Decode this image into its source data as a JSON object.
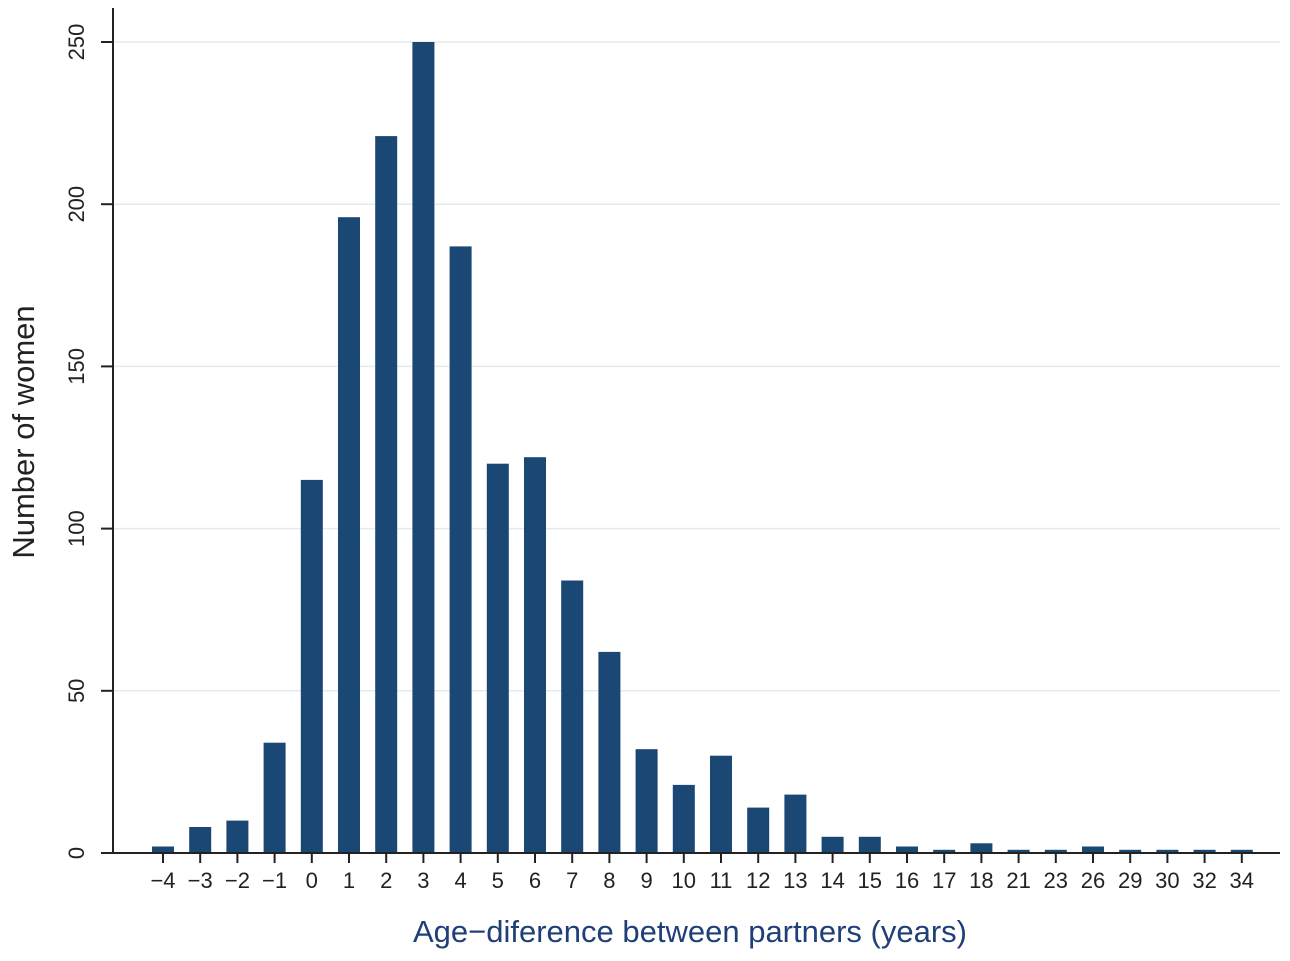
{
  "chart_data": {
    "type": "bar",
    "title": "",
    "xlabel": "Age−diference between partners (years)",
    "ylabel": "Number of women",
    "categories": [
      "−4",
      "−3",
      "−2",
      "−1",
      "0",
      "1",
      "2",
      "3",
      "4",
      "5",
      "6",
      "7",
      "8",
      "9",
      "10",
      "11",
      "12",
      "13",
      "14",
      "15",
      "16",
      "17",
      "18",
      "21",
      "23",
      "26",
      "29",
      "30",
      "32",
      "34"
    ],
    "values": [
      2,
      8,
      10,
      34,
      115,
      196,
      221,
      250,
      187,
      120,
      122,
      84,
      62,
      32,
      21,
      30,
      14,
      18,
      5,
      5,
      2,
      1,
      3,
      1,
      1,
      2,
      1,
      1,
      1,
      1
    ],
    "ylim": [
      0,
      250
    ],
    "yticks": [
      0,
      50,
      100,
      150,
      200,
      250
    ],
    "ytick_labels": [
      "0",
      "50",
      "100",
      "150",
      "200",
      "250"
    ],
    "grid": true,
    "legend": "none",
    "colors": {
      "bar": "#1a4773",
      "gridline": "#e2ebee",
      "axis": "#222222",
      "xlabel": "#1f3f78",
      "ylabel": "#222222"
    }
  }
}
